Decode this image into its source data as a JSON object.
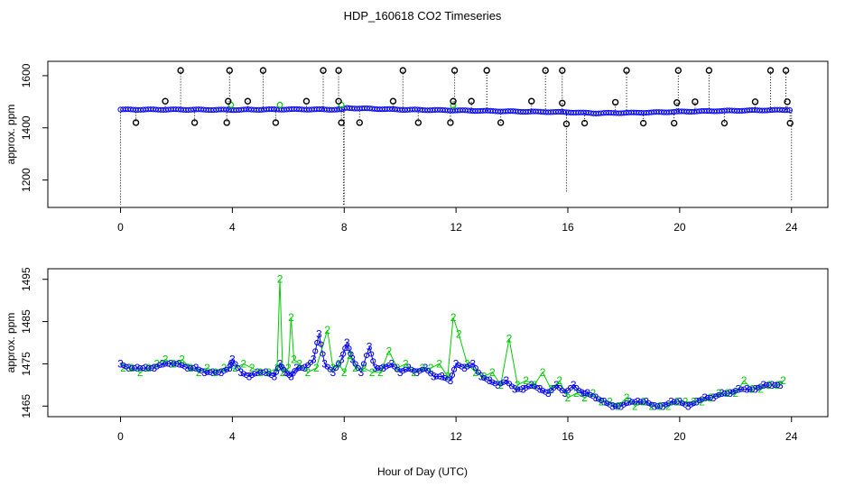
{
  "chart_data": [
    {
      "type": "scatter",
      "title": "HDP_160618  CO2 Timeseries",
      "xlabel": "",
      "ylabel": "approx. ppm",
      "xlim": [
        -2.6,
        25.3
      ],
      "ylim": [
        1095,
        1655
      ],
      "xticks": [
        0,
        4,
        8,
        12,
        16,
        20,
        24
      ],
      "xtick_labels": [
        "0",
        "4",
        "8",
        "12",
        "16",
        "20",
        "24"
      ],
      "yticks": [
        1200,
        1400,
        1600
      ],
      "ytick_labels": [
        "1200",
        "1400",
        "1600"
      ],
      "colors": {
        "main": "#0000ee",
        "secondary": "#00cc00",
        "outlier": "#000000"
      },
      "baseline": [
        [
          0.0,
          1470
        ],
        [
          2.0,
          1470
        ],
        [
          4.0,
          1469
        ],
        [
          6.0,
          1471
        ],
        [
          7.9,
          1470
        ],
        [
          8.1,
          1476
        ],
        [
          10.0,
          1470
        ],
        [
          12.0,
          1467
        ],
        [
          14.0,
          1463
        ],
        [
          16.0,
          1460
        ],
        [
          17.0,
          1456
        ],
        [
          19.0,
          1459
        ],
        [
          20.0,
          1462
        ],
        [
          22.0,
          1466
        ],
        [
          24.0,
          1469
        ]
      ],
      "outliers": [
        [
          2.15,
          1620
        ],
        [
          3.9,
          1620
        ],
        [
          5.1,
          1620
        ],
        [
          7.25,
          1620
        ],
        [
          7.8,
          1620
        ],
        [
          10.1,
          1620
        ],
        [
          11.95,
          1620
        ],
        [
          13.1,
          1620
        ],
        [
          15.2,
          1620
        ],
        [
          15.8,
          1620
        ],
        [
          18.1,
          1620
        ],
        [
          19.95,
          1620
        ],
        [
          21.05,
          1620
        ],
        [
          23.25,
          1620
        ],
        [
          23.8,
          1620
        ],
        [
          1.6,
          1502
        ],
        [
          3.85,
          1502
        ],
        [
          4.55,
          1502
        ],
        [
          6.65,
          1502
        ],
        [
          7.8,
          1502
        ],
        [
          9.75,
          1502
        ],
        [
          11.9,
          1502
        ],
        [
          12.55,
          1502
        ],
        [
          14.7,
          1502
        ],
        [
          15.8,
          1495
        ],
        [
          17.7,
          1498
        ],
        [
          19.9,
          1497
        ],
        [
          20.55,
          1500
        ],
        [
          22.7,
          1500
        ],
        [
          23.85,
          1500
        ],
        [
          0.55,
          1420
        ],
        [
          2.65,
          1420
        ],
        [
          3.8,
          1420
        ],
        [
          5.55,
          1420
        ],
        [
          7.9,
          1420
        ],
        [
          8.55,
          1420
        ],
        [
          10.65,
          1420
        ],
        [
          11.8,
          1420
        ],
        [
          13.6,
          1420
        ],
        [
          15.95,
          1415
        ],
        [
          16.6,
          1418
        ],
        [
          18.7,
          1418
        ],
        [
          19.8,
          1418
        ],
        [
          21.6,
          1418
        ],
        [
          23.95,
          1418
        ]
      ],
      "dropouts": [
        [
          0.0,
          1105
        ],
        [
          7.98,
          1105
        ],
        [
          8.0,
          1105
        ],
        [
          15.95,
          1150
        ],
        [
          24.0,
          1120
        ]
      ],
      "secondary_points": [
        [
          5.7,
          1488
        ],
        [
          7.9,
          1488
        ],
        [
          11.9,
          1485
        ],
        [
          3.95,
          1488
        ]
      ]
    },
    {
      "type": "line",
      "title": "",
      "xlabel": "Hour of Day (UTC)",
      "ylabel": "approx. ppm",
      "xlim": [
        -2.6,
        25.3
      ],
      "ylim": [
        1462.5,
        1497.5
      ],
      "xticks": [
        0,
        4,
        8,
        12,
        16,
        20,
        24
      ],
      "xtick_labels": [
        "0",
        "4",
        "8",
        "12",
        "16",
        "20",
        "24"
      ],
      "yticks": [
        1465,
        1475,
        1485,
        1495
      ],
      "ytick_labels": [
        "1465",
        "1475",
        "1485",
        "1495"
      ],
      "colors": {
        "series_3": "#0000ee",
        "series_2": "#00cc00"
      },
      "series_3_labels": "3",
      "series_2_labels": "2",
      "series": [
        {
          "name": "3",
          "color": "#0000ee",
          "x": [
            0.0,
            0.3,
            0.6,
            0.9,
            1.2,
            1.5,
            1.8,
            2.1,
            2.4,
            2.7,
            3.0,
            3.3,
            3.6,
            3.9,
            4.0,
            4.3,
            4.6,
            4.9,
            5.2,
            5.5,
            5.7,
            5.9,
            6.1,
            6.3,
            6.6,
            6.9,
            7.1,
            7.3,
            7.6,
            7.9,
            8.1,
            8.3,
            8.6,
            8.9,
            9.1,
            9.4,
            9.7,
            10.0,
            10.3,
            10.6,
            10.9,
            11.2,
            11.5,
            11.8,
            12.0,
            12.3,
            12.6,
            12.9,
            13.2,
            13.5,
            13.8,
            14.1,
            14.4,
            14.7,
            15.0,
            15.3,
            15.6,
            15.9,
            16.2,
            16.5,
            16.7,
            17.0,
            17.3,
            17.6,
            17.9,
            18.2,
            18.5,
            18.8,
            19.1,
            19.4,
            19.7,
            20.0,
            20.3,
            20.6,
            20.9,
            21.2,
            21.5,
            21.8,
            22.1,
            22.4,
            22.7,
            23.0,
            23.3,
            23.6
          ],
          "y": [
            1475,
            1474,
            1474,
            1474,
            1474,
            1475,
            1475,
            1475,
            1474,
            1474,
            1473,
            1473,
            1473,
            1474,
            1476,
            1473,
            1472,
            1473,
            1473,
            1472,
            1475,
            1473,
            1472,
            1474,
            1474,
            1476,
            1482,
            1475,
            1473,
            1476,
            1480,
            1476,
            1473,
            1479,
            1474,
            1474,
            1475,
            1473,
            1474,
            1473,
            1474,
            1472,
            1472,
            1471,
            1475,
            1474,
            1475,
            1472,
            1471,
            1470,
            1471,
            1469,
            1469,
            1470,
            1469,
            1468,
            1470,
            1468,
            1470,
            1468,
            1468,
            1467,
            1466,
            1465,
            1465,
            1466,
            1466,
            1466,
            1465,
            1465,
            1466,
            1466,
            1465,
            1466,
            1467,
            1467,
            1468,
            1468,
            1469,
            1469,
            1469,
            1470,
            1470,
            1470
          ]
        },
        {
          "name": "2",
          "color": "#00cc00",
          "x": [
            0.1,
            0.4,
            0.7,
            1.0,
            1.3,
            1.6,
            1.9,
            2.2,
            2.5,
            2.8,
            3.1,
            3.4,
            3.7,
            4.1,
            4.4,
            4.7,
            5.0,
            5.3,
            5.6,
            5.7,
            5.8,
            6.0,
            6.1,
            6.2,
            6.4,
            6.7,
            7.0,
            7.4,
            7.6,
            7.8,
            8.0,
            8.2,
            8.4,
            8.7,
            9.0,
            9.3,
            9.6,
            9.9,
            10.2,
            10.5,
            10.8,
            11.1,
            11.4,
            11.7,
            11.9,
            12.1,
            12.4,
            12.7,
            13.0,
            13.3,
            13.6,
            13.9,
            14.2,
            14.5,
            14.8,
            15.1,
            15.4,
            15.7,
            16.0,
            16.3,
            16.6,
            16.9,
            17.2,
            17.5,
            17.8,
            18.1,
            18.4,
            18.7,
            19.0,
            19.3,
            19.6,
            19.9,
            20.2,
            20.5,
            20.8,
            21.1,
            21.4,
            21.7,
            22.0,
            22.3,
            22.6,
            22.9,
            23.2,
            23.5,
            23.7
          ],
          "y": [
            1474,
            1474,
            1473,
            1474,
            1475,
            1476,
            1475,
            1476,
            1474,
            1473,
            1474,
            1473,
            1474,
            1474,
            1475,
            1474,
            1473,
            1473,
            1474,
            1495,
            1473,
            1474,
            1486,
            1476,
            1475,
            1473,
            1474,
            1483,
            1474,
            1475,
            1473,
            1477,
            1474,
            1474,
            1473,
            1473,
            1478,
            1474,
            1475,
            1473,
            1474,
            1474,
            1475,
            1472,
            1486,
            1482,
            1475,
            1473,
            1472,
            1473,
            1470,
            1481,
            1470,
            1471,
            1470,
            1473,
            1469,
            1471,
            1467,
            1468,
            1467,
            1468,
            1466,
            1466,
            1465,
            1467,
            1465,
            1466,
            1465,
            1465,
            1465,
            1466,
            1466,
            1466,
            1466,
            1467,
            1468,
            1468,
            1468,
            1471,
            1469,
            1469,
            1470,
            1470,
            1471
          ]
        }
      ]
    }
  ]
}
